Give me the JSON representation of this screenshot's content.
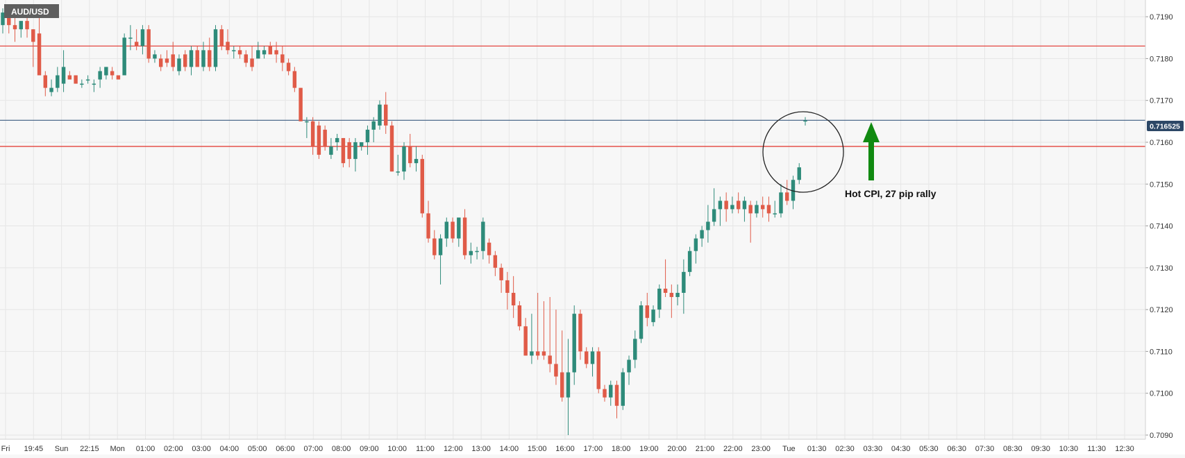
{
  "symbol": "AUD/USD",
  "annotation": "Hot CPI, 27 pip rally",
  "current_price_label": "0.716525",
  "colors": {
    "up": "#2e8b7a",
    "down": "#e05b48",
    "support_line": "#e2312a",
    "price_line": "#3b5a80",
    "arrow": "#118a11",
    "background": "#f7f7f7",
    "grid": "#e6e6e6"
  },
  "chart_data": {
    "type": "candlestick",
    "ylim": [
      0.7089,
      0.7194
    ],
    "y_ticks": [
      "0.7190",
      "0.7180",
      "0.7170",
      "0.7160",
      "0.7150",
      "0.7140",
      "0.7130",
      "0.7120",
      "0.7110",
      "0.7100",
      "0.7090"
    ],
    "x_tick_labels": [
      "Fri",
      "19:45",
      "Sun",
      "22:15",
      "Mon",
      "01:00",
      "02:00",
      "03:00",
      "04:00",
      "05:00",
      "06:00",
      "07:00",
      "08:00",
      "09:00",
      "10:00",
      "11:00",
      "12:00",
      "13:00",
      "14:00",
      "15:00",
      "16:00",
      "17:00",
      "18:00",
      "19:00",
      "20:00",
      "21:00",
      "22:00",
      "23:00",
      "Tue",
      "01:30",
      "02:30",
      "03:30",
      "04:30",
      "05:30",
      "06:30",
      "07:30",
      "08:30",
      "09:30",
      "10:30",
      "11:30",
      "12:30"
    ],
    "horizontal_lines": [
      {
        "kind": "resistance",
        "price": 0.7183
      },
      {
        "kind": "current_price",
        "price": 0.716525
      },
      {
        "kind": "support",
        "price": 0.7159
      }
    ],
    "candles": [
      {
        "o": 0.7188,
        "h": 0.7192,
        "l": 0.7186,
        "c": 0.7191
      },
      {
        "o": 0.719,
        "h": 0.7192,
        "l": 0.7186,
        "c": 0.7188
      },
      {
        "o": 0.7188,
        "h": 0.7191,
        "l": 0.7184,
        "c": 0.7187
      },
      {
        "o": 0.7187,
        "h": 0.7188,
        "l": 0.7185,
        "c": 0.7189
      },
      {
        "o": 0.7189,
        "h": 0.719,
        "l": 0.7185,
        "c": 0.7187
      },
      {
        "o": 0.7187,
        "h": 0.7187,
        "l": 0.7178,
        "c": 0.7184
      },
      {
        "o": 0.7186,
        "h": 0.719,
        "l": 0.7177,
        "c": 0.7176
      },
      {
        "o": 0.7176,
        "h": 0.7177,
        "l": 0.7171,
        "c": 0.7173
      },
      {
        "o": 0.7172,
        "h": 0.7175,
        "l": 0.7171,
        "c": 0.7173
      },
      {
        "o": 0.7173,
        "h": 0.7178,
        "l": 0.7172,
        "c": 0.7176
      },
      {
        "o": 0.7174,
        "h": 0.7182,
        "l": 0.7172,
        "c": 0.7178
      },
      {
        "o": 0.7176,
        "h": 0.7177,
        "l": 0.7175,
        "c": 0.7175
      },
      {
        "o": 0.7176,
        "h": 0.7176,
        "l": 0.7174,
        "c": 0.7174
      },
      {
        "o": 0.7174,
        "h": 0.7175,
        "l": 0.7173,
        "c": 0.7174
      },
      {
        "o": 0.7175,
        "h": 0.7176,
        "l": 0.7174,
        "c": 0.7175
      },
      {
        "o": 0.7174,
        "h": 0.7175,
        "l": 0.7172,
        "c": 0.7174
      },
      {
        "o": 0.7175,
        "h": 0.7178,
        "l": 0.7173,
        "c": 0.7177
      },
      {
        "o": 0.7176,
        "h": 0.7178,
        "l": 0.7175,
        "c": 0.7178
      },
      {
        "o": 0.7177,
        "h": 0.7178,
        "l": 0.7175,
        "c": 0.7176
      },
      {
        "o": 0.7176,
        "h": 0.7176,
        "l": 0.7175,
        "c": 0.7175
      },
      {
        "o": 0.7176,
        "h": 0.7186,
        "l": 0.7176,
        "c": 0.7185
      },
      {
        "o": 0.7185,
        "h": 0.7188,
        "l": 0.7182,
        "c": 0.7185
      },
      {
        "o": 0.7184,
        "h": 0.7187,
        "l": 0.7182,
        "c": 0.7183
      },
      {
        "o": 0.7183,
        "h": 0.7188,
        "l": 0.7181,
        "c": 0.7187
      },
      {
        "o": 0.7187,
        "h": 0.7188,
        "l": 0.7179,
        "c": 0.718
      },
      {
        "o": 0.718,
        "h": 0.7182,
        "l": 0.7179,
        "c": 0.7181
      },
      {
        "o": 0.718,
        "h": 0.7181,
        "l": 0.7177,
        "c": 0.7178
      },
      {
        "o": 0.718,
        "h": 0.7182,
        "l": 0.7178,
        "c": 0.7179
      },
      {
        "o": 0.7181,
        "h": 0.7184,
        "l": 0.7177,
        "c": 0.7178
      },
      {
        "o": 0.7177,
        "h": 0.7181,
        "l": 0.7176,
        "c": 0.718
      },
      {
        "o": 0.7181,
        "h": 0.7182,
        "l": 0.7177,
        "c": 0.7178
      },
      {
        "o": 0.7178,
        "h": 0.7183,
        "l": 0.7176,
        "c": 0.7182
      },
      {
        "o": 0.7182,
        "h": 0.7183,
        "l": 0.7178,
        "c": 0.7178
      },
      {
        "o": 0.7178,
        "h": 0.7184,
        "l": 0.7177,
        "c": 0.7182
      },
      {
        "o": 0.7182,
        "h": 0.7185,
        "l": 0.7177,
        "c": 0.7178
      },
      {
        "o": 0.7178,
        "h": 0.7188,
        "l": 0.7177,
        "c": 0.7187
      },
      {
        "o": 0.7187,
        "h": 0.7188,
        "l": 0.7182,
        "c": 0.7183
      },
      {
        "o": 0.7184,
        "h": 0.7187,
        "l": 0.7181,
        "c": 0.7182
      },
      {
        "o": 0.7182,
        "h": 0.7183,
        "l": 0.718,
        "c": 0.7182
      },
      {
        "o": 0.7182,
        "h": 0.7183,
        "l": 0.718,
        "c": 0.7181
      },
      {
        "o": 0.7181,
        "h": 0.7182,
        "l": 0.7178,
        "c": 0.7179
      },
      {
        "o": 0.718,
        "h": 0.7183,
        "l": 0.7177,
        "c": 0.7178
      },
      {
        "o": 0.718,
        "h": 0.7184,
        "l": 0.718,
        "c": 0.7182
      },
      {
        "o": 0.7181,
        "h": 0.7183,
        "l": 0.718,
        "c": 0.7182
      },
      {
        "o": 0.7183,
        "h": 0.7184,
        "l": 0.7181,
        "c": 0.7181
      },
      {
        "o": 0.7182,
        "h": 0.7184,
        "l": 0.7179,
        "c": 0.7181
      },
      {
        "o": 0.7181,
        "h": 0.7183,
        "l": 0.7177,
        "c": 0.7179
      },
      {
        "o": 0.7179,
        "h": 0.718,
        "l": 0.7176,
        "c": 0.7177
      },
      {
        "o": 0.7177,
        "h": 0.7178,
        "l": 0.7172,
        "c": 0.7173
      },
      {
        "o": 0.7173,
        "h": 0.7173,
        "l": 0.7165,
        "c": 0.7165
      },
      {
        "o": 0.7165,
        "h": 0.7166,
        "l": 0.7161,
        "c": 0.7165
      },
      {
        "o": 0.7165,
        "h": 0.7166,
        "l": 0.7157,
        "c": 0.7159
      },
      {
        "o": 0.7164,
        "h": 0.7165,
        "l": 0.7156,
        "c": 0.7157
      },
      {
        "o": 0.7163,
        "h": 0.7164,
        "l": 0.7158,
        "c": 0.7159
      },
      {
        "o": 0.7157,
        "h": 0.7161,
        "l": 0.7156,
        "c": 0.7159
      },
      {
        "o": 0.716,
        "h": 0.7162,
        "l": 0.7158,
        "c": 0.7161
      },
      {
        "o": 0.7161,
        "h": 0.7161,
        "l": 0.7154,
        "c": 0.7155
      },
      {
        "o": 0.716,
        "h": 0.7161,
        "l": 0.7154,
        "c": 0.7156
      },
      {
        "o": 0.7156,
        "h": 0.7161,
        "l": 0.7153,
        "c": 0.716
      },
      {
        "o": 0.7159,
        "h": 0.716,
        "l": 0.7158,
        "c": 0.716
      },
      {
        "o": 0.716,
        "h": 0.7164,
        "l": 0.7157,
        "c": 0.7163
      },
      {
        "o": 0.7163,
        "h": 0.7166,
        "l": 0.716,
        "c": 0.7165
      },
      {
        "o": 0.7164,
        "h": 0.717,
        "l": 0.7163,
        "c": 0.7169
      },
      {
        "o": 0.7169,
        "h": 0.7172,
        "l": 0.7162,
        "c": 0.7164
      },
      {
        "o": 0.7164,
        "h": 0.7165,
        "l": 0.7153,
        "c": 0.7153
      },
      {
        "o": 0.7153,
        "h": 0.7157,
        "l": 0.7152,
        "c": 0.7153
      },
      {
        "o": 0.7153,
        "h": 0.716,
        "l": 0.7151,
        "c": 0.7159
      },
      {
        "o": 0.7159,
        "h": 0.7162,
        "l": 0.7154,
        "c": 0.7155
      },
      {
        "o": 0.7155,
        "h": 0.7159,
        "l": 0.7153,
        "c": 0.7156
      },
      {
        "o": 0.7156,
        "h": 0.7157,
        "l": 0.7142,
        "c": 0.7143
      },
      {
        "o": 0.7143,
        "h": 0.7146,
        "l": 0.7136,
        "c": 0.7137
      },
      {
        "o": 0.7137,
        "h": 0.7139,
        "l": 0.7132,
        "c": 0.7133
      },
      {
        "o": 0.7133,
        "h": 0.7138,
        "l": 0.7126,
        "c": 0.7137
      },
      {
        "o": 0.7137,
        "h": 0.7142,
        "l": 0.7135,
        "c": 0.7141
      },
      {
        "o": 0.7141,
        "h": 0.7142,
        "l": 0.7136,
        "c": 0.7137
      },
      {
        "o": 0.7137,
        "h": 0.7142,
        "l": 0.7135,
        "c": 0.7142
      },
      {
        "o": 0.7142,
        "h": 0.7144,
        "l": 0.7132,
        "c": 0.7133
      },
      {
        "o": 0.7133,
        "h": 0.7136,
        "l": 0.7131,
        "c": 0.7134
      },
      {
        "o": 0.7134,
        "h": 0.7135,
        "l": 0.7132,
        "c": 0.7134
      },
      {
        "o": 0.7134,
        "h": 0.7142,
        "l": 0.7132,
        "c": 0.7141
      },
      {
        "o": 0.7136,
        "h": 0.7137,
        "l": 0.7131,
        "c": 0.7133
      },
      {
        "o": 0.7133,
        "h": 0.7134,
        "l": 0.7128,
        "c": 0.713
      },
      {
        "o": 0.713,
        "h": 0.7131,
        "l": 0.7124,
        "c": 0.7127
      },
      {
        "o": 0.7127,
        "h": 0.7129,
        "l": 0.712,
        "c": 0.7124
      },
      {
        "o": 0.7124,
        "h": 0.7128,
        "l": 0.7118,
        "c": 0.7121
      },
      {
        "o": 0.7121,
        "h": 0.7122,
        "l": 0.7115,
        "c": 0.7116
      },
      {
        "o": 0.7116,
        "h": 0.7118,
        "l": 0.7109,
        "c": 0.7109
      },
      {
        "o": 0.7109,
        "h": 0.7119,
        "l": 0.7107,
        "c": 0.711
      },
      {
        "o": 0.711,
        "h": 0.7124,
        "l": 0.7108,
        "c": 0.7109
      },
      {
        "o": 0.711,
        "h": 0.7122,
        "l": 0.7108,
        "c": 0.7109
      },
      {
        "o": 0.7109,
        "h": 0.7123,
        "l": 0.7105,
        "c": 0.7107
      },
      {
        "o": 0.7107,
        "h": 0.712,
        "l": 0.7102,
        "c": 0.7104
      },
      {
        "o": 0.7105,
        "h": 0.7115,
        "l": 0.7098,
        "c": 0.7099
      },
      {
        "o": 0.7099,
        "h": 0.7113,
        "l": 0.709,
        "c": 0.7105
      },
      {
        "o": 0.7105,
        "h": 0.7121,
        "l": 0.7102,
        "c": 0.7119
      },
      {
        "o": 0.7119,
        "h": 0.712,
        "l": 0.7108,
        "c": 0.711
      },
      {
        "o": 0.711,
        "h": 0.7111,
        "l": 0.7106,
        "c": 0.7107
      },
      {
        "o": 0.7107,
        "h": 0.7111,
        "l": 0.7104,
        "c": 0.711
      },
      {
        "o": 0.711,
        "h": 0.7111,
        "l": 0.71,
        "c": 0.7101
      },
      {
        "o": 0.7101,
        "h": 0.7102,
        "l": 0.7098,
        "c": 0.7099
      },
      {
        "o": 0.7099,
        "h": 0.7103,
        "l": 0.7097,
        "c": 0.7102
      },
      {
        "o": 0.7102,
        "h": 0.7103,
        "l": 0.7094,
        "c": 0.7097
      },
      {
        "o": 0.7097,
        "h": 0.7106,
        "l": 0.7096,
        "c": 0.7105
      },
      {
        "o": 0.7105,
        "h": 0.7109,
        "l": 0.7102,
        "c": 0.7108
      },
      {
        "o": 0.7108,
        "h": 0.7115,
        "l": 0.7106,
        "c": 0.7113
      },
      {
        "o": 0.7113,
        "h": 0.7122,
        "l": 0.7112,
        "c": 0.7121
      },
      {
        "o": 0.7121,
        "h": 0.7124,
        "l": 0.7116,
        "c": 0.7118
      },
      {
        "o": 0.7117,
        "h": 0.7121,
        "l": 0.7116,
        "c": 0.712
      },
      {
        "o": 0.712,
        "h": 0.7126,
        "l": 0.7118,
        "c": 0.7125
      },
      {
        "o": 0.7125,
        "h": 0.7132,
        "l": 0.7123,
        "c": 0.7124
      },
      {
        "o": 0.7124,
        "h": 0.7126,
        "l": 0.7118,
        "c": 0.7123
      },
      {
        "o": 0.7123,
        "h": 0.7126,
        "l": 0.7121,
        "c": 0.7124
      },
      {
        "o": 0.7124,
        "h": 0.7132,
        "l": 0.7119,
        "c": 0.7129
      },
      {
        "o": 0.7129,
        "h": 0.7135,
        "l": 0.7128,
        "c": 0.7134
      },
      {
        "o": 0.7134,
        "h": 0.7138,
        "l": 0.7131,
        "c": 0.7137
      },
      {
        "o": 0.7137,
        "h": 0.714,
        "l": 0.7135,
        "c": 0.7139
      },
      {
        "o": 0.7139,
        "h": 0.7145,
        "l": 0.7136,
        "c": 0.7141
      },
      {
        "o": 0.7141,
        "h": 0.7149,
        "l": 0.714,
        "c": 0.7144
      },
      {
        "o": 0.7144,
        "h": 0.7147,
        "l": 0.714,
        "c": 0.7146
      },
      {
        "o": 0.7146,
        "h": 0.7148,
        "l": 0.7141,
        "c": 0.7144
      },
      {
        "o": 0.7144,
        "h": 0.7147,
        "l": 0.7143,
        "c": 0.7145
      },
      {
        "o": 0.7146,
        "h": 0.7148,
        "l": 0.7143,
        "c": 0.7144
      },
      {
        "o": 0.7144,
        "h": 0.7147,
        "l": 0.7141,
        "c": 0.7146
      },
      {
        "o": 0.7145,
        "h": 0.7146,
        "l": 0.7136,
        "c": 0.7143
      },
      {
        "o": 0.7143,
        "h": 0.7146,
        "l": 0.7142,
        "c": 0.7145
      },
      {
        "o": 0.7145,
        "h": 0.7147,
        "l": 0.7142,
        "c": 0.7144
      },
      {
        "o": 0.7145,
        "h": 0.7147,
        "l": 0.7141,
        "c": 0.7143
      },
      {
        "o": 0.7143,
        "h": 0.7146,
        "l": 0.7142,
        "c": 0.7143
      },
      {
        "o": 0.7143,
        "h": 0.715,
        "l": 0.7142,
        "c": 0.7148
      },
      {
        "o": 0.7148,
        "h": 0.7151,
        "l": 0.7145,
        "c": 0.7146
      },
      {
        "o": 0.7146,
        "h": 0.7152,
        "l": 0.7144,
        "c": 0.7151
      },
      {
        "o": 0.7151,
        "h": 0.7155,
        "l": 0.715,
        "c": 0.7154
      },
      {
        "o": 0.7165,
        "h": 0.7166,
        "l": 0.7164,
        "c": 0.71652
      }
    ]
  }
}
